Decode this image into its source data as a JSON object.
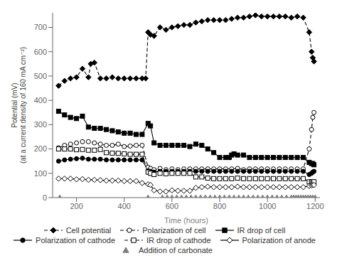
{
  "chart_data": {
    "type": "line",
    "xlabel": "Time (hours)",
    "ylabel": "Potential (mV)\n(at a current density of 160 mA cm⁻²)",
    "xlim": [
      100,
      1220
    ],
    "ylim": [
      0,
      760
    ],
    "xticks": [
      200,
      400,
      600,
      800,
      1000,
      1200
    ],
    "yticks": [
      0,
      100,
      200,
      300,
      400,
      500,
      600,
      700
    ],
    "grid": false,
    "legend": "bottom",
    "series": [
      {
        "name": "Cell potential",
        "color": "black",
        "marker": "diamond",
        "line_style": "dashed",
        "x": [
          125,
          150,
          175,
          200,
          225,
          250,
          260,
          275,
          300,
          325,
          350,
          375,
          400,
          425,
          450,
          475,
          490,
          500,
          510,
          525,
          550,
          575,
          600,
          625,
          650,
          675,
          700,
          725,
          750,
          775,
          800,
          825,
          850,
          875,
          900,
          925,
          950,
          975,
          1000,
          1025,
          1050,
          1075,
          1100,
          1125,
          1150,
          1175,
          1185,
          1190,
          1195
        ],
        "values": [
          460,
          480,
          490,
          495,
          530,
          495,
          550,
          555,
          490,
          490,
          495,
          490,
          490,
          490,
          490,
          490,
          490,
          680,
          670,
          665,
          700,
          690,
          700,
          705,
          710,
          710,
          720,
          725,
          730,
          730,
          730,
          730,
          735,
          740,
          740,
          745,
          750,
          745,
          745,
          745,
          745,
          745,
          740,
          745,
          740,
          680,
          600,
          575,
          560
        ]
      },
      {
        "name": "Polarization of cell",
        "color": "black",
        "marker": "circle_open",
        "line_style": "dashed",
        "x": [
          125,
          150,
          175,
          200,
          225,
          250,
          275,
          300,
          325,
          350,
          375,
          400,
          425,
          450,
          475,
          500,
          510,
          525,
          550,
          575,
          600,
          625,
          650,
          675,
          700,
          725,
          750,
          775,
          800,
          825,
          850,
          875,
          900,
          925,
          950,
          975,
          1000,
          1025,
          1050,
          1075,
          1100,
          1125,
          1150,
          1175,
          1185,
          1190,
          1195
        ],
        "values": [
          205,
          215,
          220,
          225,
          230,
          230,
          225,
          220,
          215,
          215,
          220,
          210,
          212,
          215,
          215,
          125,
          120,
          115,
          120,
          115,
          118,
          115,
          118,
          118,
          118,
          118,
          118,
          118,
          118,
          118,
          118,
          120,
          115,
          118,
          118,
          118,
          118,
          118,
          118,
          118,
          118,
          118,
          118,
          200,
          280,
          330,
          350
        ]
      },
      {
        "name": "IR drop of cell",
        "color": "black",
        "marker": "square",
        "line_style": "solid",
        "x": [
          125,
          150,
          175,
          200,
          225,
          250,
          275,
          300,
          325,
          350,
          375,
          400,
          425,
          450,
          475,
          500,
          510,
          525,
          550,
          575,
          600,
          625,
          650,
          675,
          700,
          725,
          750,
          775,
          800,
          825,
          840,
          850,
          860,
          875,
          900,
          925,
          950,
          975,
          1000,
          1025,
          1050,
          1075,
          1100,
          1125,
          1150,
          1175,
          1185,
          1190,
          1195
        ],
        "values": [
          355,
          340,
          330,
          325,
          335,
          290,
          285,
          285,
          280,
          275,
          270,
          265,
          265,
          260,
          260,
          305,
          295,
          225,
          215,
          215,
          215,
          215,
          215,
          210,
          220,
          215,
          200,
          185,
          165,
          165,
          165,
          175,
          180,
          175,
          175,
          165,
          165,
          165,
          165,
          165,
          165,
          165,
          165,
          165,
          165,
          145,
          140,
          140,
          135
        ]
      },
      {
        "name": "Polarization of cathode",
        "color": "black",
        "marker": "circle",
        "line_style": "solid",
        "x": [
          125,
          150,
          175,
          200,
          225,
          250,
          275,
          300,
          325,
          350,
          375,
          400,
          425,
          450,
          475,
          500,
          510,
          525,
          550,
          575,
          600,
          625,
          650,
          675,
          700,
          725,
          750,
          775,
          800,
          825,
          850,
          875,
          900,
          925,
          950,
          975,
          1000,
          1025,
          1050,
          1075,
          1100,
          1125,
          1150,
          1175,
          1185,
          1190,
          1195
        ],
        "values": [
          150,
          155,
          158,
          160,
          162,
          158,
          158,
          158,
          155,
          155,
          155,
          155,
          155,
          155,
          155,
          110,
          108,
          105,
          108,
          108,
          108,
          108,
          108,
          108,
          108,
          108,
          108,
          108,
          108,
          108,
          108,
          108,
          108,
          108,
          108,
          108,
          108,
          108,
          108,
          108,
          108,
          108,
          108,
          95,
          100,
          105,
          108
        ]
      },
      {
        "name": "IR drop of cathode",
        "color": "black",
        "marker": "square_open",
        "line_style": "dashed",
        "x": [
          125,
          150,
          175,
          200,
          225,
          250,
          275,
          300,
          325,
          350,
          375,
          400,
          425,
          450,
          475,
          500,
          510,
          525,
          550,
          575,
          600,
          625,
          650,
          675,
          700,
          725,
          750,
          775,
          800,
          825,
          850,
          875,
          900,
          925,
          950,
          975,
          1000,
          1025,
          1050,
          1075,
          1100,
          1125,
          1150,
          1175,
          1185,
          1190,
          1195
        ],
        "values": [
          200,
          200,
          200,
          197,
          198,
          195,
          195,
          198,
          185,
          183,
          182,
          180,
          178,
          178,
          178,
          105,
          100,
          95,
          100,
          98,
          100,
          100,
          100,
          100,
          85,
          85,
          80,
          78,
          78,
          78,
          78,
          80,
          78,
          78,
          78,
          78,
          78,
          78,
          78,
          78,
          78,
          78,
          78,
          65,
          65,
          65,
          65
        ]
      },
      {
        "name": "Polarization of anode",
        "color": "black",
        "marker": "diamond_open",
        "line_style": "solid",
        "x": [
          125,
          150,
          175,
          200,
          225,
          250,
          275,
          300,
          325,
          350,
          375,
          400,
          425,
          450,
          475,
          500,
          510,
          525,
          550,
          575,
          600,
          625,
          650,
          675,
          700,
          725,
          750,
          775,
          800,
          825,
          850,
          875,
          900,
          925,
          950,
          975,
          1000,
          1025,
          1050,
          1075,
          1100,
          1125,
          1150,
          1175,
          1185,
          1190,
          1195
        ],
        "values": [
          78,
          78,
          78,
          75,
          76,
          73,
          73,
          72,
          70,
          70,
          70,
          68,
          68,
          68,
          60,
          55,
          52,
          30,
          25,
          25,
          30,
          28,
          28,
          28,
          40,
          43,
          45,
          43,
          43,
          43,
          43,
          45,
          43,
          43,
          43,
          43,
          43,
          43,
          43,
          43,
          43,
          43,
          43,
          48,
          50,
          52,
          52
        ]
      },
      {
        "name": "Addition of carbonate",
        "color": "#808080",
        "marker": "triangle",
        "line_style": "none",
        "x": [
          130,
          500,
          560,
          580,
          600,
          620,
          640,
          660,
          680,
          700,
          720,
          740,
          760,
          780,
          800,
          820,
          840,
          860,
          880,
          900,
          920,
          940,
          960,
          980,
          1000,
          1020,
          1040,
          1060,
          1080,
          1100,
          1110,
          1120,
          1130,
          1140,
          1150,
          1160,
          1170,
          1180,
          1190,
          1200
        ],
        "values": [
          0,
          0,
          0,
          0,
          0,
          0,
          0,
          0,
          0,
          0,
          0,
          0,
          0,
          0,
          0,
          0,
          0,
          0,
          0,
          0,
          0,
          0,
          0,
          0,
          0,
          0,
          0,
          0,
          0,
          0,
          0,
          0,
          0,
          0,
          0,
          0,
          0,
          0,
          0,
          0
        ]
      }
    ]
  }
}
